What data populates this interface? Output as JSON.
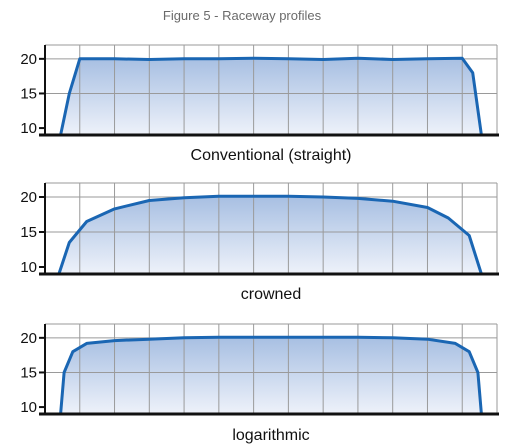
{
  "figure_title": "Figure 5 - Raceway profiles",
  "colors": {
    "curve": "#1a66b3",
    "fill_top": "#a7bfe2",
    "fill_bottom": "#eef2fa",
    "grid": "#9a9a9a",
    "axis": "#111111"
  },
  "chart_data": [
    {
      "type": "area",
      "xlabel": "Conventional (straight)",
      "ylabel": "",
      "ylim": [
        9,
        22
      ],
      "xlim": [
        0,
        13
      ],
      "yticks": [
        10,
        15,
        20
      ],
      "grid": true,
      "x": [
        0.45,
        0.7,
        1.0,
        2.0,
        3.0,
        4.0,
        5.0,
        6.0,
        7.0,
        8.0,
        9.0,
        10.0,
        11.0,
        12.0,
        12.3,
        12.55
      ],
      "values": [
        9.0,
        15.0,
        20.0,
        20.0,
        19.9,
        20.0,
        20.0,
        20.1,
        20.0,
        19.9,
        20.1,
        19.9,
        20.0,
        20.1,
        18.0,
        9.0
      ]
    },
    {
      "type": "area",
      "xlabel": "crowned",
      "ylabel": "",
      "ylim": [
        9,
        22
      ],
      "xlim": [
        0,
        13
      ],
      "yticks": [
        10,
        15,
        20
      ],
      "grid": true,
      "x": [
        0.4,
        0.7,
        1.2,
        2.0,
        3.0,
        4.0,
        5.0,
        6.0,
        7.0,
        8.0,
        9.0,
        10.0,
        11.0,
        11.6,
        12.2,
        12.55
      ],
      "values": [
        9.0,
        13.5,
        16.5,
        18.3,
        19.5,
        19.9,
        20.1,
        20.1,
        20.1,
        20.0,
        19.8,
        19.4,
        18.5,
        17.0,
        14.5,
        9.0
      ]
    },
    {
      "type": "area",
      "xlabel": "logarithmic",
      "ylabel": "",
      "ylim": [
        9,
        22
      ],
      "xlim": [
        0,
        13
      ],
      "yticks": [
        10,
        15,
        20
      ],
      "grid": true,
      "x": [
        0.45,
        0.55,
        0.8,
        1.2,
        2.0,
        3.0,
        4.0,
        5.0,
        6.0,
        7.0,
        8.0,
        9.0,
        10.0,
        11.0,
        11.8,
        12.2,
        12.45,
        12.55
      ],
      "values": [
        9.0,
        15.0,
        18.0,
        19.2,
        19.6,
        19.8,
        20.0,
        20.1,
        20.1,
        20.1,
        20.1,
        20.1,
        20.0,
        19.8,
        19.2,
        18.0,
        15.0,
        9.0
      ]
    }
  ]
}
